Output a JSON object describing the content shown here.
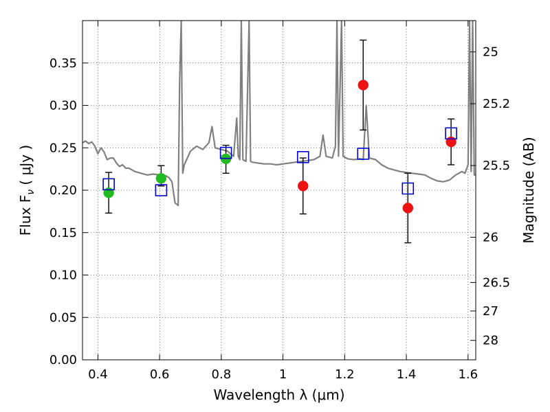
{
  "chart_data": {
    "type": "scatter",
    "xlabel": "Wavelength  λ (μm)",
    "ylabel": "Flux  F",
    "ylabel_sub": "ν",
    "ylabel_unit": " ( μJy )",
    "y2label": "Magnitude (AB)",
    "xlim": [
      0.35,
      1.625
    ],
    "ylim": [
      0.0,
      0.4
    ],
    "grid": true,
    "x_ticks": [
      {
        "v": 0.4,
        "label": "0.4"
      },
      {
        "v": 0.6,
        "label": "0.6"
      },
      {
        "v": 0.8,
        "label": "0.8"
      },
      {
        "v": 1.0,
        "label": "1"
      },
      {
        "v": 1.2,
        "label": "1.2"
      },
      {
        "v": 1.4,
        "label": "1.4"
      },
      {
        "v": 1.6,
        "label": "1.6"
      }
    ],
    "y_ticks": [
      {
        "v": 0.0,
        "label": "0.00"
      },
      {
        "v": 0.05,
        "label": "0.05"
      },
      {
        "v": 0.1,
        "label": "0.10"
      },
      {
        "v": 0.15,
        "label": "0.15"
      },
      {
        "v": 0.2,
        "label": "0.20"
      },
      {
        "v": 0.25,
        "label": "0.25"
      },
      {
        "v": 0.3,
        "label": "0.30"
      },
      {
        "v": 0.35,
        "label": "0.35"
      }
    ],
    "mag_ticks": [
      {
        "label": "25",
        "mag": 25.0
      },
      {
        "label": "25.2",
        "mag": 25.2
      },
      {
        "label": "25.5",
        "mag": 25.5
      },
      {
        "label": "26",
        "mag": 26.0
      },
      {
        "label": "26.5",
        "mag": 26.5
      },
      {
        "label": "27",
        "mag": 27.0
      },
      {
        "label": "28",
        "mag": 28.0
      }
    ],
    "template_spectrum": {
      "color": "#808080",
      "points": [
        [
          0.35,
          0.256
        ],
        [
          0.36,
          0.258
        ],
        [
          0.37,
          0.255
        ],
        [
          0.38,
          0.257
        ],
        [
          0.39,
          0.252
        ],
        [
          0.4,
          0.243
        ],
        [
          0.41,
          0.25
        ],
        [
          0.42,
          0.245
        ],
        [
          0.43,
          0.236
        ],
        [
          0.44,
          0.238
        ],
        [
          0.45,
          0.238
        ],
        [
          0.46,
          0.232
        ],
        [
          0.47,
          0.228
        ],
        [
          0.48,
          0.23
        ],
        [
          0.49,
          0.226
        ],
        [
          0.5,
          0.226
        ],
        [
          0.52,
          0.222
        ],
        [
          0.54,
          0.22
        ],
        [
          0.56,
          0.218
        ],
        [
          0.58,
          0.219
        ],
        [
          0.6,
          0.218
        ],
        [
          0.62,
          0.217
        ],
        [
          0.63,
          0.215
        ],
        [
          0.64,
          0.21
        ],
        [
          0.65,
          0.185
        ],
        [
          0.66,
          0.182
        ],
        [
          0.665,
          0.33
        ],
        [
          0.67,
          0.4
        ],
        [
          0.675,
          0.22
        ],
        [
          0.68,
          0.23
        ],
        [
          0.7,
          0.246
        ],
        [
          0.72,
          0.252
        ],
        [
          0.74,
          0.248
        ],
        [
          0.76,
          0.256
        ],
        [
          0.77,
          0.275
        ],
        [
          0.78,
          0.25
        ],
        [
          0.8,
          0.248
        ],
        [
          0.82,
          0.246
        ],
        [
          0.84,
          0.24
        ],
        [
          0.85,
          0.285
        ],
        [
          0.855,
          0.24
        ],
        [
          0.86,
          0.236
        ],
        [
          0.865,
          0.4
        ],
        [
          0.87,
          0.236
        ],
        [
          0.88,
          0.234
        ],
        [
          0.89,
          0.4
        ],
        [
          0.895,
          0.234
        ],
        [
          0.9,
          0.233
        ],
        [
          0.92,
          0.232
        ],
        [
          0.94,
          0.231
        ],
        [
          0.96,
          0.231
        ],
        [
          0.98,
          0.23
        ],
        [
          1.0,
          0.231
        ],
        [
          1.02,
          0.232
        ],
        [
          1.04,
          0.233
        ],
        [
          1.06,
          0.234
        ],
        [
          1.08,
          0.235
        ],
        [
          1.1,
          0.236
        ],
        [
          1.12,
          0.24
        ],
        [
          1.13,
          0.265
        ],
        [
          1.14,
          0.24
        ],
        [
          1.16,
          0.238
        ],
        [
          1.17,
          0.252
        ],
        [
          1.175,
          0.4
        ],
        [
          1.18,
          0.24
        ],
        [
          1.19,
          0.4
        ],
        [
          1.195,
          0.24
        ],
        [
          1.21,
          0.237
        ],
        [
          1.23,
          0.236
        ],
        [
          1.25,
          0.237
        ],
        [
          1.26,
          0.236
        ],
        [
          1.27,
          0.3
        ],
        [
          1.28,
          0.238
        ],
        [
          1.3,
          0.236
        ],
        [
          1.32,
          0.23
        ],
        [
          1.34,
          0.226
        ],
        [
          1.36,
          0.224
        ],
        [
          1.38,
          0.222
        ],
        [
          1.4,
          0.221
        ],
        [
          1.42,
          0.22
        ],
        [
          1.44,
          0.219
        ],
        [
          1.46,
          0.218
        ],
        [
          1.48,
          0.214
        ],
        [
          1.5,
          0.211
        ],
        [
          1.52,
          0.21
        ],
        [
          1.54,
          0.212
        ],
        [
          1.56,
          0.218
        ],
        [
          1.58,
          0.222
        ],
        [
          1.59,
          0.22
        ],
        [
          1.6,
          0.23
        ],
        [
          1.605,
          0.4
        ],
        [
          1.61,
          0.222
        ],
        [
          1.615,
          0.4
        ],
        [
          1.62,
          0.218
        ],
        [
          1.625,
          0.218
        ]
      ]
    },
    "series": [
      {
        "marker": "circle",
        "color": "#22bb22",
        "points": [
          {
            "x": 0.435,
            "y": 0.197
          },
          {
            "x": 0.605,
            "y": 0.214
          },
          {
            "x": 0.815,
            "y": 0.237
          }
        ]
      },
      {
        "marker": "circle",
        "color": "#ee1111",
        "points": [
          {
            "x": 1.065,
            "y": 0.205
          },
          {
            "x": 1.26,
            "y": 0.324
          },
          {
            "x": 1.405,
            "y": 0.179
          },
          {
            "x": 1.545,
            "y": 0.257
          }
        ]
      },
      {
        "marker": "open-square",
        "color": "#0000cc",
        "points": [
          {
            "x": 0.435,
            "y": 0.207
          },
          {
            "x": 0.605,
            "y": 0.2
          },
          {
            "x": 0.815,
            "y": 0.244
          },
          {
            "x": 1.065,
            "y": 0.239
          },
          {
            "x": 1.26,
            "y": 0.243
          },
          {
            "x": 1.405,
            "y": 0.202
          },
          {
            "x": 1.545,
            "y": 0.267
          }
        ]
      }
    ],
    "error_bars": [
      {
        "x": 0.435,
        "lo": 0.173,
        "hi": 0.221
      },
      {
        "x": 0.605,
        "lo": 0.205,
        "hi": 0.229
      },
      {
        "x": 0.815,
        "lo": 0.22,
        "hi": 0.253
      },
      {
        "x": 1.065,
        "lo": 0.172,
        "hi": 0.238
      },
      {
        "x": 1.26,
        "lo": 0.271,
        "hi": 0.377
      },
      {
        "x": 1.405,
        "lo": 0.138,
        "hi": 0.22
      },
      {
        "x": 1.545,
        "lo": 0.23,
        "hi": 0.284
      }
    ]
  }
}
